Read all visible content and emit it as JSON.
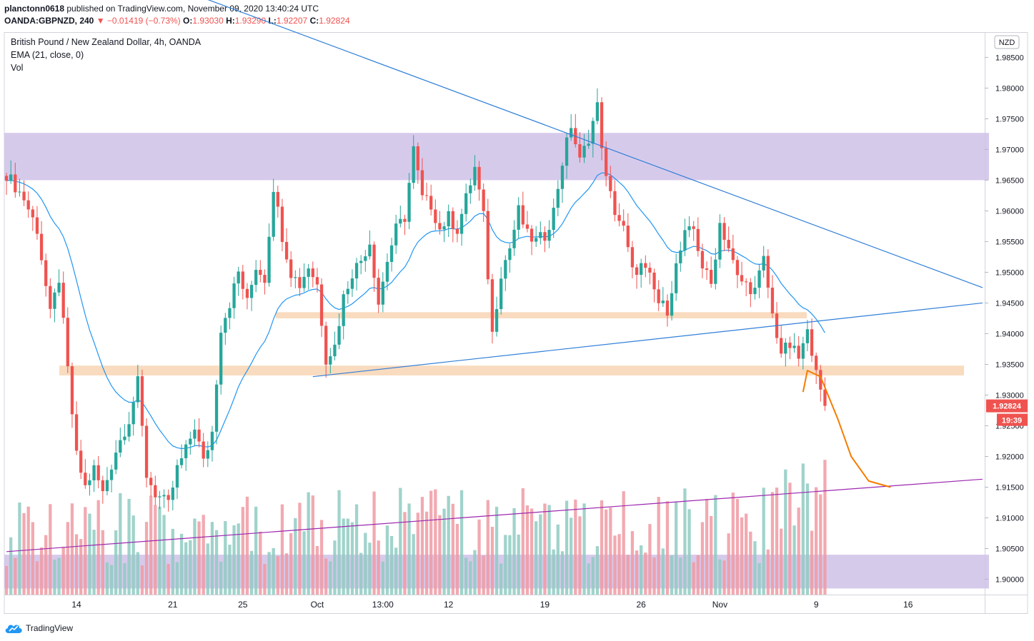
{
  "header": {
    "author": "planctonn0618",
    "published_text": "published on TradingView.com, November 09, 2020 13:40:24 UTC",
    "symbol": "OANDA:GBPNZD, 240",
    "change": "▼ −0.01419 (−0.73%)",
    "o_label": "O:",
    "o_value": "1.93030",
    "h_label": "H:",
    "h_value": "1.93290",
    "l_label": "L:",
    "l_value": "1.92207",
    "c_label": "C:",
    "c_value": "1.92824"
  },
  "legend": {
    "title": "British Pound / New Zealand Dollar, 4h, OANDA",
    "ema": "EMA (21, close, 0)",
    "vol": "Vol"
  },
  "footer": {
    "brand": "TradingView"
  },
  "chart_data": {
    "type": "candlestick",
    "title": "British Pound / New Zealand Dollar, 4h, OANDA",
    "currency": "NZD",
    "ylim": [
      1.8975,
      1.989
    ],
    "y_ticks": [
      "1.90000",
      "1.90500",
      "1.91000",
      "1.91500",
      "1.92000",
      "1.92500",
      "1.93000",
      "1.93500",
      "1.94000",
      "1.94500",
      "1.95000",
      "1.95500",
      "1.96000",
      "1.96500",
      "1.97000",
      "1.97500",
      "1.98000",
      "1.98500"
    ],
    "x_ticks": [
      "14",
      "21",
      "25",
      "Oct",
      "13:00",
      "12",
      "19",
      "26",
      "Nov",
      "9",
      "16"
    ],
    "x_tick_index": [
      16,
      38,
      54,
      71,
      86,
      101,
      123,
      145,
      163,
      185,
      206
    ],
    "bar_count": 224,
    "last_bar_index": 187,
    "last_price": "1.92824",
    "countdown": "19:39",
    "price_path": [
      [
        0,
        1.966
      ],
      [
        4,
        1.962
      ],
      [
        7,
        1.957
      ],
      [
        10,
        1.943
      ],
      [
        12,
        1.949
      ],
      [
        14,
        1.934
      ],
      [
        16,
        1.92
      ],
      [
        18,
        1.915
      ],
      [
        20,
        1.918
      ],
      [
        22,
        1.914
      ],
      [
        25,
        1.921
      ],
      [
        28,
        1.926
      ],
      [
        30,
        1.932
      ],
      [
        32,
        1.917
      ],
      [
        34,
        1.914
      ],
      [
        37,
        1.912
      ],
      [
        39,
        1.918
      ],
      [
        41,
        1.921
      ],
      [
        43,
        1.925
      ],
      [
        45,
        1.919
      ],
      [
        47,
        1.924
      ],
      [
        49,
        1.941
      ],
      [
        51,
        1.945
      ],
      [
        53,
        1.95
      ],
      [
        55,
        1.945
      ],
      [
        57,
        1.951
      ],
      [
        59,
        1.949
      ],
      [
        61,
        1.964
      ],
      [
        63,
        1.956
      ],
      [
        65,
        1.95
      ],
      [
        67,
        1.948
      ],
      [
        69,
        1.951
      ],
      [
        71,
        1.948
      ],
      [
        73,
        1.936
      ],
      [
        75,
        1.938
      ],
      [
        77,
        1.946
      ],
      [
        79,
        1.95
      ],
      [
        81,
        1.952
      ],
      [
        83,
        1.955
      ],
      [
        85,
        1.945
      ],
      [
        87,
        1.952
      ],
      [
        89,
        1.957
      ],
      [
        91,
        1.959
      ],
      [
        93,
        1.97
      ],
      [
        95,
        1.962
      ],
      [
        97,
        1.961
      ],
      [
        99,
        1.957
      ],
      [
        101,
        1.959
      ],
      [
        103,
        1.957
      ],
      [
        105,
        1.962
      ],
      [
        107,
        1.967
      ],
      [
        109,
        1.959
      ],
      [
        111,
        1.94
      ],
      [
        113,
        1.95
      ],
      [
        115,
        1.954
      ],
      [
        117,
        1.96
      ],
      [
        119,
        1.956
      ],
      [
        121,
        1.955
      ],
      [
        123,
        1.956
      ],
      [
        125,
        1.96
      ],
      [
        127,
        1.968
      ],
      [
        129,
        1.974
      ],
      [
        131,
        1.968
      ],
      [
        133,
        1.972
      ],
      [
        135,
        1.977
      ],
      [
        137,
        1.965
      ],
      [
        139,
        1.96
      ],
      [
        141,
        1.957
      ],
      [
        143,
        1.95
      ],
      [
        145,
        1.951
      ],
      [
        147,
        1.949
      ],
      [
        149,
        1.945
      ],
      [
        151,
        1.944
      ],
      [
        153,
        1.951
      ],
      [
        155,
        1.956
      ],
      [
        157,
        1.957
      ],
      [
        159,
        1.951
      ],
      [
        161,
        1.948
      ],
      [
        163,
        1.958
      ],
      [
        165,
        1.954
      ],
      [
        167,
        1.949
      ],
      [
        169,
        1.948
      ],
      [
        171,
        1.947
      ],
      [
        173,
        1.952
      ],
      [
        175,
        1.943
      ],
      [
        177,
        1.937
      ],
      [
        179,
        1.938
      ],
      [
        181,
        1.936
      ],
      [
        183,
        1.94
      ],
      [
        185,
        1.935
      ],
      [
        186,
        1.93
      ],
      [
        187,
        1.92824
      ]
    ],
    "zones": [
      {
        "name": "resistance-zone",
        "from": 1.965,
        "to": 1.9727,
        "color": "#d1c4e9"
      },
      {
        "name": "support-zone-upper",
        "from": 1.9425,
        "to": 1.9435,
        "color": "#f8d7b8"
      },
      {
        "name": "support-zone-lower",
        "from": 1.9332,
        "to": 1.9348,
        "color": "#f8d7b8"
      },
      {
        "name": "demand-zone",
        "from": 1.8985,
        "to": 1.904,
        "color": "#d1c4e9"
      }
    ],
    "trendlines": [
      {
        "name": "descending-trendline",
        "color": "#2f7ed8",
        "points": [
          [
            40,
            1.996
          ],
          [
            223,
            1.9475
          ]
        ]
      },
      {
        "name": "ascending-trendline",
        "color": "#2f7ed8",
        "points": [
          [
            70,
            1.933
          ],
          [
            223,
            1.945
          ]
        ]
      },
      {
        "name": "purple-trendline",
        "color": "#9c27b0",
        "points": [
          [
            0,
            1.9045
          ],
          [
            223,
            1.9163
          ]
        ]
      }
    ],
    "projection": {
      "color": "#f57c00",
      "points": [
        [
          182,
          1.9305
        ],
        [
          183,
          1.934
        ],
        [
          186,
          1.933
        ],
        [
          190,
          1.926
        ],
        [
          193,
          1.92
        ],
        [
          197,
          1.916
        ],
        [
          202,
          1.915
        ]
      ]
    },
    "colors": {
      "up": "#26a69a",
      "down": "#ef5350",
      "ema": "#2196f3",
      "vol_up": "#8fcbc2",
      "vol_down": "#f09aa3"
    }
  }
}
